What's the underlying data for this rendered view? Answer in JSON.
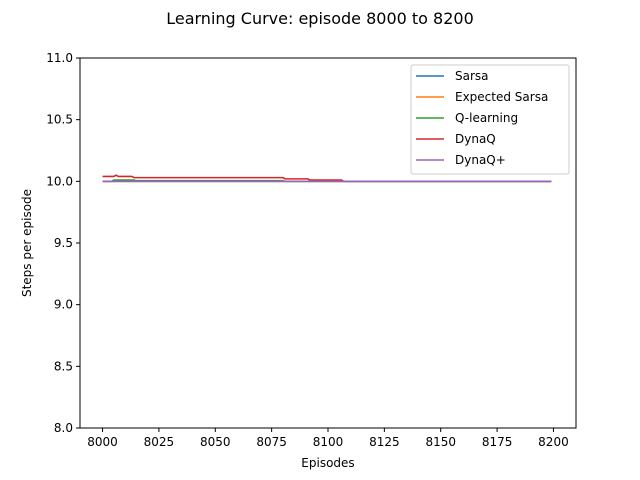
{
  "chart_data": {
    "type": "line",
    "title": "Learning Curve: episode 8000 to 8200",
    "xlabel": "Episodes",
    "ylabel": "Steps per episode",
    "xlim": [
      7990,
      8210
    ],
    "ylim": [
      8.0,
      11.0
    ],
    "xticks": [
      8000,
      8025,
      8050,
      8075,
      8100,
      8125,
      8150,
      8175,
      8200
    ],
    "yticks": [
      8.0,
      8.5,
      9.0,
      9.5,
      10.0,
      10.5,
      11.0
    ],
    "ytick_labels": [
      "8.0",
      "8.5",
      "9.0",
      "9.5",
      "10.0",
      "10.5",
      "11.0"
    ],
    "grid": false,
    "legend": "upper-right",
    "series": [
      {
        "name": "Sarsa",
        "color": "#1f77b4",
        "x": [
          8000,
          8199
        ],
        "y": [
          10.0,
          10.0
        ]
      },
      {
        "name": "Expected Sarsa",
        "color": "#ff7f0e",
        "x": [
          8000,
          8199
        ],
        "y": [
          10.0,
          10.0
        ]
      },
      {
        "name": "Q-learning",
        "color": "#2ca02c",
        "x": [
          8000,
          8004,
          8005,
          8014,
          8015,
          8080,
          8081,
          8199
        ],
        "y": [
          10.0,
          10.0,
          10.01,
          10.01,
          10.005,
          10.005,
          10.0,
          10.0
        ]
      },
      {
        "name": "DynaQ",
        "color": "#d62728",
        "x": [
          8000,
          8005,
          8006,
          8007,
          8013,
          8014,
          8080,
          8081,
          8091,
          8092,
          8106,
          8107,
          8199
        ],
        "y": [
          10.04,
          10.04,
          10.05,
          10.04,
          10.04,
          10.03,
          10.03,
          10.02,
          10.02,
          10.01,
          10.01,
          10.0,
          10.0
        ]
      },
      {
        "name": "DynaQ+",
        "color": "#9467bd",
        "x": [
          8000,
          8199
        ],
        "y": [
          10.0,
          10.0
        ]
      }
    ]
  }
}
